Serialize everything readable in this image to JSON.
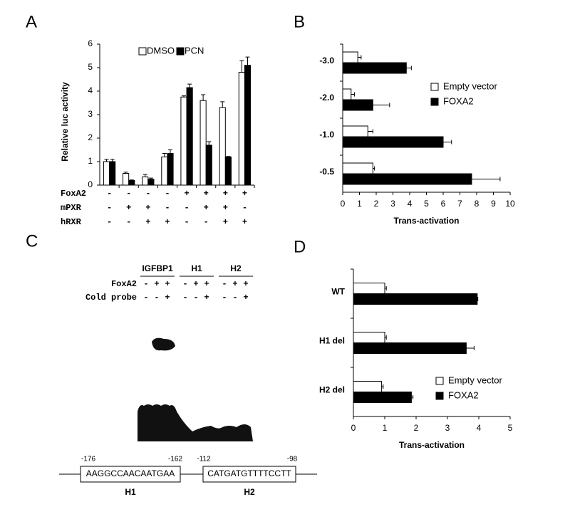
{
  "panel_labels": [
    "A",
    "B",
    "C",
    "D"
  ],
  "chart_data": [
    {
      "type": "bar",
      "ylabel": "Relative luc activity",
      "categories": [
        null,
        null,
        null,
        null,
        null,
        null,
        null,
        null
      ],
      "series": [
        {
          "name": "DMSO",
          "color": "#ffffff",
          "values": [
            1.0,
            0.5,
            0.35,
            1.2,
            3.75,
            3.6,
            3.3,
            4.8
          ],
          "errors": [
            0.1,
            0.05,
            0.1,
            0.15,
            0.05,
            0.25,
            0.25,
            0.5
          ]
        },
        {
          "name": "PCN",
          "color": "#000000",
          "values": [
            1.0,
            0.2,
            0.25,
            1.35,
            4.15,
            1.7,
            1.2,
            5.1
          ],
          "errors": [
            0.1,
            0.02,
            0.05,
            0.15,
            0.15,
            0.15,
            0.02,
            0.35
          ]
        }
      ],
      "ylim": [
        0,
        6
      ],
      "yticks": [
        0,
        1,
        2,
        3,
        4,
        5,
        6
      ],
      "conditions": [
        {
          "name": "FoxA2",
          "signs": [
            "-",
            "-",
            "-",
            "-",
            "+",
            "+",
            "+",
            "+"
          ]
        },
        {
          "name": "mPXR",
          "signs": [
            "-",
            "+",
            "+",
            "-",
            "-",
            "+",
            "+",
            "-"
          ]
        },
        {
          "name": "hRXR",
          "signs": [
            "-",
            "-",
            "+",
            "+",
            "-",
            "-",
            "+",
            "+"
          ]
        }
      ]
    },
    {
      "type": "barh",
      "xlabel": "Trans-activation",
      "categories": [
        "-3.0",
        "-2.0",
        "-1.0",
        "-0.5"
      ],
      "series": [
        {
          "name": "Empty vector",
          "color": "#ffffff",
          "values": [
            0.9,
            0.5,
            1.5,
            1.8
          ],
          "errors": [
            0.2,
            0.2,
            0.3,
            0.1
          ]
        },
        {
          "name": "FOXA2",
          "color": "#000000",
          "values": [
            3.8,
            1.8,
            6.0,
            7.7
          ],
          "errors": [
            0.3,
            1.0,
            0.5,
            1.7
          ]
        }
      ],
      "xlim": [
        0,
        10
      ],
      "xticks": [
        0,
        1,
        2,
        3,
        4,
        5,
        6,
        7,
        8,
        9,
        10
      ]
    },
    {
      "type": "barh",
      "xlabel": "Trans-activation",
      "categories": [
        "WT",
        "H1 del",
        "H2 del"
      ],
      "series": [
        {
          "name": "Empty vector",
          "color": "#ffffff",
          "values": [
            1.0,
            1.0,
            0.9
          ],
          "errors": [
            0.05,
            0.05,
            0.05
          ]
        },
        {
          "name": "FOXA2",
          "color": "#000000",
          "values": [
            3.95,
            3.6,
            1.85
          ],
          "errors": [
            0.02,
            0.25,
            0.05
          ]
        }
      ],
      "xlim": [
        0,
        5
      ],
      "xticks": [
        0,
        1,
        2,
        3,
        4,
        5
      ]
    }
  ],
  "gel": {
    "row_labels": [
      "FoxA2",
      "Cold probe"
    ],
    "probes": [
      {
        "name": "IGFBP1",
        "foxa2": [
          "-",
          "+",
          "+"
        ],
        "cold_probe": [
          "-",
          "-",
          "+"
        ]
      },
      {
        "name": "H1",
        "foxa2": [
          "-",
          "+",
          "+"
        ],
        "cold_probe": [
          "-",
          "-",
          "+"
        ]
      },
      {
        "name": "H2",
        "foxa2": [
          "-",
          "+",
          "+"
        ],
        "cold_probe": [
          "-",
          "-",
          "+"
        ]
      }
    ]
  },
  "sequence": {
    "sites": [
      {
        "name": "H1",
        "start": "-176",
        "end": "-162",
        "sequence": "AAGGCCAACAATGAA"
      },
      {
        "name": "H2",
        "start": "-112",
        "end": "-98",
        "sequence": "CATGATGTTTTCCTT"
      }
    ]
  }
}
